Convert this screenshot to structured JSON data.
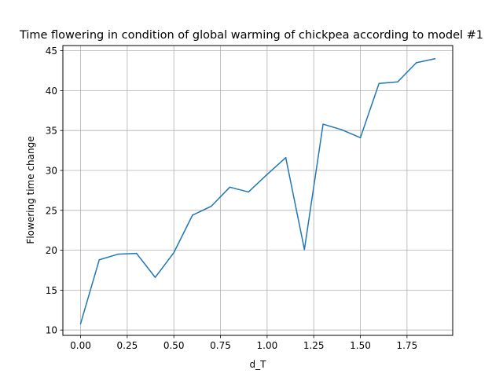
{
  "chart_data": {
    "type": "line",
    "title": "Time flowering in condition of global warming of chickpea according to model #1",
    "xlabel": "d_T",
    "ylabel": "Flowering time change",
    "xlim": [
      -0.095,
      1.995
    ],
    "ylim": [
      9.33,
      45.65
    ],
    "grid": true,
    "x_ticks": [
      0.0,
      0.25,
      0.5,
      0.75,
      1.0,
      1.25,
      1.5,
      1.75
    ],
    "x_tick_labels": [
      "0.00",
      "0.25",
      "0.50",
      "0.75",
      "1.00",
      "1.25",
      "1.50",
      "1.75"
    ],
    "y_ticks": [
      10,
      15,
      20,
      25,
      30,
      35,
      40,
      45
    ],
    "y_tick_labels": [
      "10",
      "15",
      "20",
      "25",
      "30",
      "35",
      "40",
      "45"
    ],
    "series": [
      {
        "color": "#1f77b4",
        "x": [
          0.0,
          0.1,
          0.2,
          0.3,
          0.4,
          0.5,
          0.6,
          0.7,
          0.8,
          0.9,
          1.0,
          1.1,
          1.2,
          1.3,
          1.4,
          1.5,
          1.6,
          1.7,
          1.8,
          1.9
        ],
        "y": [
          10.8,
          18.8,
          19.5,
          19.6,
          16.6,
          19.7,
          24.4,
          25.5,
          27.9,
          27.3,
          29.5,
          31.6,
          20.1,
          35.8,
          35.1,
          34.1,
          40.9,
          41.1,
          43.5,
          44.0
        ]
      }
    ]
  }
}
